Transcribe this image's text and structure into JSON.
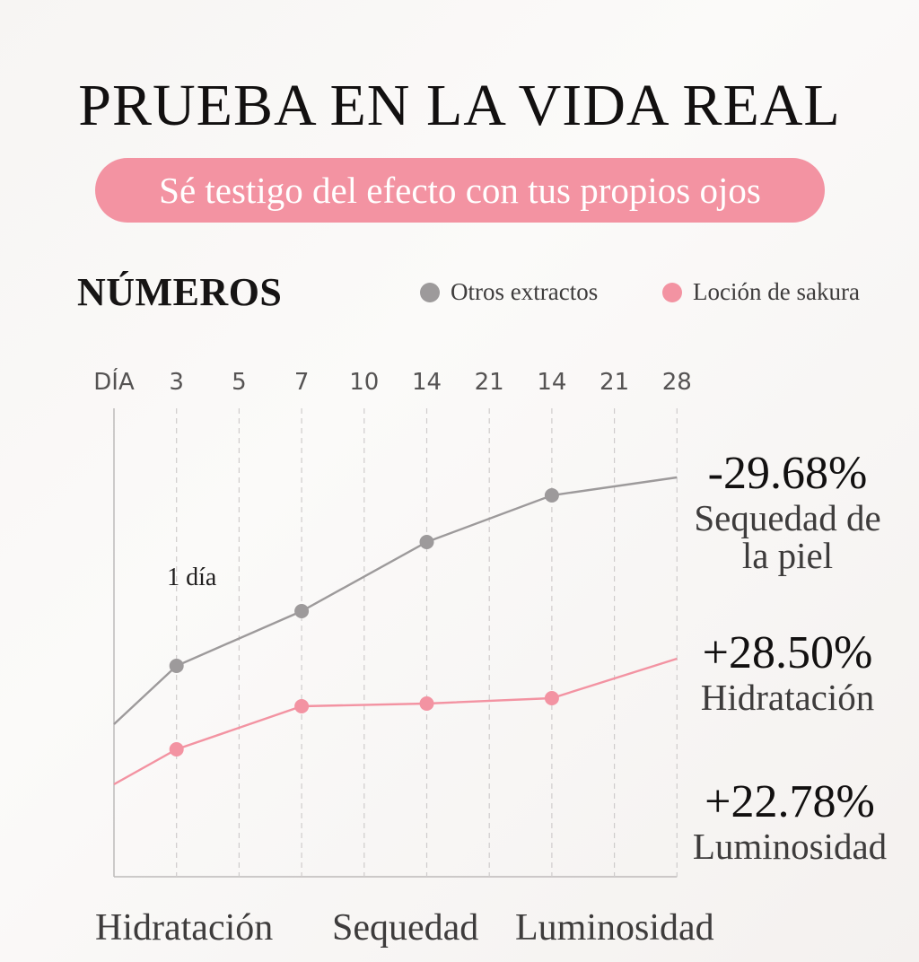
{
  "header": {
    "title": "PRUEBA EN LA VIDA REAL",
    "subtitle": "Sé testigo del efecto con tus propios ojos"
  },
  "section": {
    "title": "NÚMEROS"
  },
  "colors": {
    "gray_series": "#9d9a9b",
    "pink_series": "#f393a2",
    "pill": "#f393a2",
    "grid": "#cfcccc"
  },
  "chart_data": {
    "type": "line",
    "x_axis_title": "DÍA",
    "categories": [
      "3",
      "5",
      "7",
      "10",
      "14",
      "21",
      "14",
      "21",
      "28"
    ],
    "x": [
      0,
      3,
      5,
      7,
      10,
      14,
      21,
      14,
      21,
      28
    ],
    "series": [
      {
        "name": "Otros extractos",
        "color": "#9d9a9b",
        "points": [
          {
            "x": 0,
            "y": 17.0
          },
          {
            "x": 3,
            "y": 23.5,
            "marker": true
          },
          {
            "x": 7,
            "y": 29.6,
            "marker": true
          },
          {
            "x": 14,
            "y": 37.3,
            "marker": true
          },
          {
            "x": 14,
            "y": 42.5,
            "marker": true,
            "position": 7
          },
          {
            "x": 28,
            "y": 44.5
          }
        ]
      },
      {
        "name": "Loción de sakura",
        "color": "#f393a2",
        "points": [
          {
            "x": 0,
            "y": 10.3
          },
          {
            "x": 3,
            "y": 14.2,
            "marker": true
          },
          {
            "x": 7,
            "y": 19.0,
            "marker": true
          },
          {
            "x": 14,
            "y": 19.3,
            "marker": true
          },
          {
            "x": 14,
            "y": 19.9,
            "marker": true,
            "position": 7
          },
          {
            "x": 28,
            "y": 24.3
          }
        ]
      }
    ],
    "annotations": [
      {
        "text": "1 día",
        "x": 3
      }
    ],
    "results": [
      {
        "value": "-29.68%",
        "label": "Sequedad de la piel"
      },
      {
        "value": "+28.50%",
        "label": "Hidratación"
      },
      {
        "value": "+22.78%",
        "label": "Luminosidad"
      }
    ],
    "phases": [
      "Hidratación",
      "Sequedad",
      "Luminosidad"
    ],
    "grid": true,
    "legend_position": "top-right"
  }
}
